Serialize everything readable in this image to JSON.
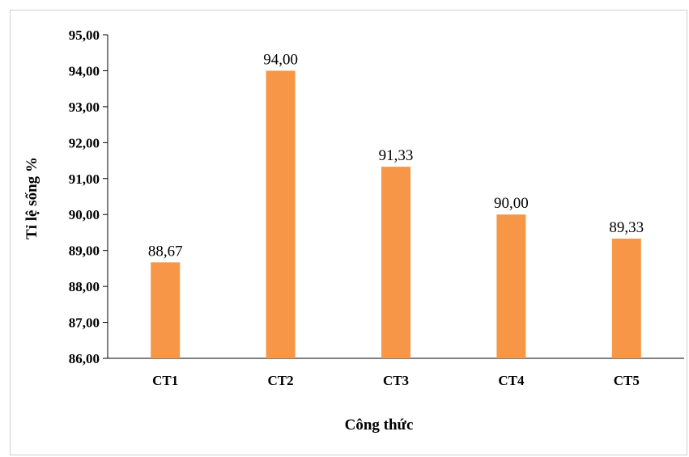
{
  "chart_data": {
    "type": "bar",
    "categories": [
      "CT1",
      "CT2",
      "CT3",
      "CT4",
      "CT5"
    ],
    "values": [
      88.67,
      94.0,
      91.33,
      90.0,
      89.33
    ],
    "value_labels": [
      "88,67",
      "94,00",
      "91,33",
      "90,00",
      "89,33"
    ],
    "yticks": [
      86,
      87,
      88,
      89,
      90,
      91,
      92,
      93,
      94,
      95
    ],
    "ytick_labels": [
      "86,00",
      "87,00",
      "88,00",
      "89,00",
      "90,00",
      "91,00",
      "92,00",
      "93,00",
      "94,00",
      "95,00"
    ],
    "ylim": [
      86,
      95
    ],
    "xlabel": "Công thức",
    "ylabel": "Tỉ lệ sống %",
    "title": "",
    "grid": false,
    "legend": "none",
    "bar_color": "#f79646"
  }
}
